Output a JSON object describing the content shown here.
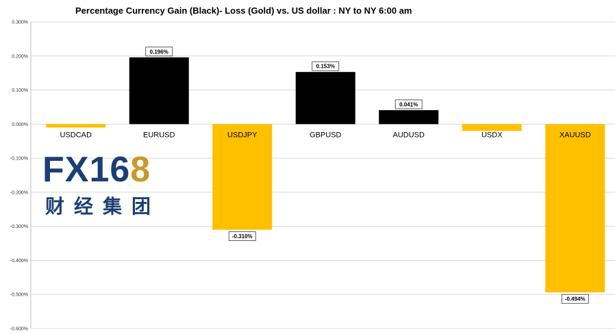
{
  "chart_data": {
    "type": "bar",
    "title": "Percentage Currency  Gain (Black)- Loss (Gold)  vs. US dollar :  NY  to  NY 6:00 am",
    "categories": [
      "USDCAD",
      "EURUSD",
      "USDJPY",
      "GBPUSD",
      "AUDUSD",
      "USDX",
      "XAUUSD"
    ],
    "values": [
      -0.01,
      0.196,
      -0.31,
      0.153,
      0.041,
      -0.02,
      -0.494
    ],
    "data_labels": [
      "",
      "0.196%",
      "-0.310%",
      "0.153%",
      "0.041%",
      "",
      "-0.494%"
    ],
    "ylim": [
      -0.6,
      0.3
    ],
    "yticks": [
      0.3,
      0.2,
      0.1,
      0.0,
      -0.1,
      -0.2,
      -0.3,
      -0.4,
      -0.5,
      -0.6
    ],
    "ytick_labels": [
      "0.300%",
      "0.200%",
      "0.100%",
      "0.000%",
      "-0.100%",
      "-0.200%",
      "-0.300%",
      "-0.400%",
      "-0.500%",
      "-0.600%"
    ],
    "grid": true,
    "xlabel": "",
    "ylabel": "",
    "gain_color": "#000000",
    "loss_color": "#ffc000"
  },
  "logo": {
    "main": "FX16",
    "accent": "8",
    "sub": "财经集团"
  }
}
